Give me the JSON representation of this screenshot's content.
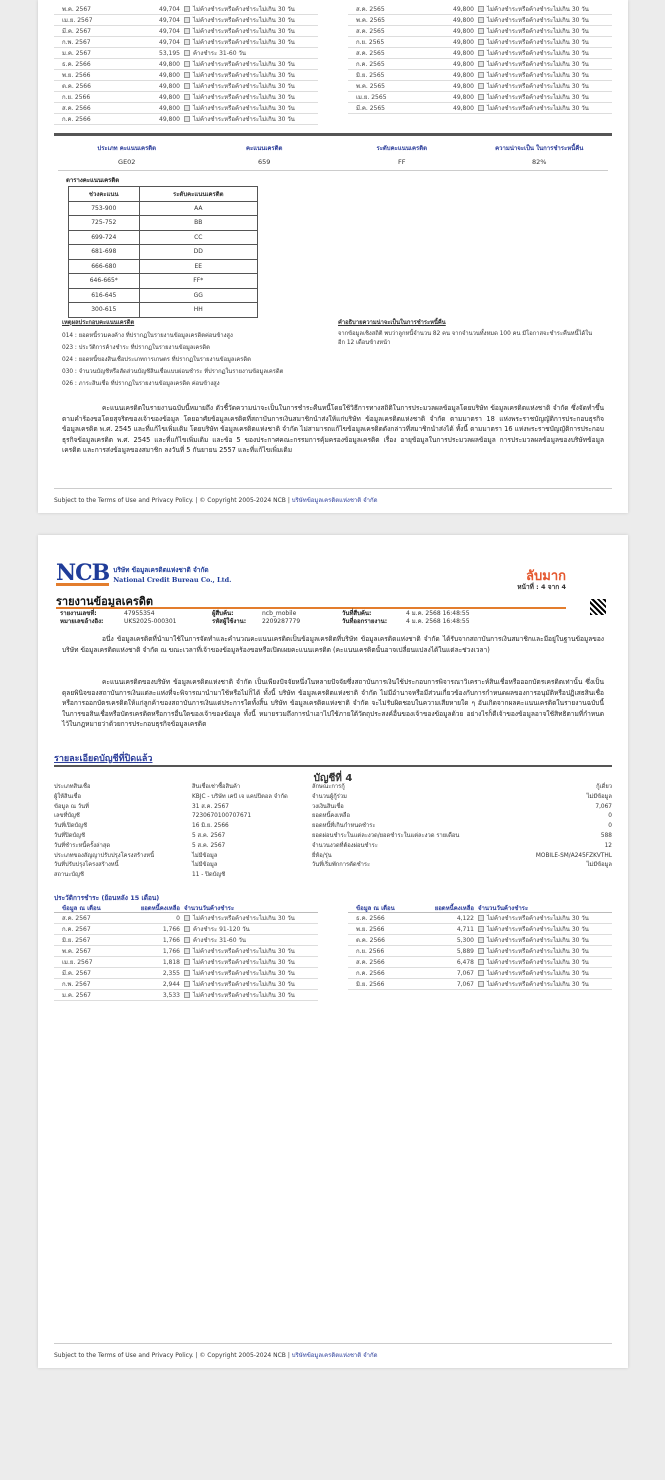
{
  "page1": {
    "history_left": [
      {
        "month": "พ.ค. 2567",
        "amount": "49,704",
        "status": "ไม่ค้างชำระหรือค้างชำระไม่เกิน 30 วัน"
      },
      {
        "month": "เม.ย. 2567",
        "amount": "49,704",
        "status": "ไม่ค้างชำระหรือค้างชำระไม่เกิน 30 วัน"
      },
      {
        "month": "มี.ค. 2567",
        "amount": "49,704",
        "status": "ไม่ค้างชำระหรือค้างชำระไม่เกิน 30 วัน"
      },
      {
        "month": "ก.พ. 2567",
        "amount": "49,704",
        "status": "ไม่ค้างชำระหรือค้างชำระไม่เกิน 30 วัน"
      },
      {
        "month": "ม.ค. 2567",
        "amount": "53,195",
        "status": "ค้างชำระ 31-60 วัน"
      },
      {
        "month": "ธ.ค. 2566",
        "amount": "49,800",
        "status": "ไม่ค้างชำระหรือค้างชำระไม่เกิน 30 วัน"
      },
      {
        "month": "พ.ย. 2566",
        "amount": "49,800",
        "status": "ไม่ค้างชำระหรือค้างชำระไม่เกิน 30 วัน"
      },
      {
        "month": "ต.ค. 2566",
        "amount": "49,800",
        "status": "ไม่ค้างชำระหรือค้างชำระไม่เกิน 30 วัน"
      },
      {
        "month": "ก.ย. 2566",
        "amount": "49,800",
        "status": "ไม่ค้างชำระหรือค้างชำระไม่เกิน 30 วัน"
      },
      {
        "month": "ส.ค. 2566",
        "amount": "49,800",
        "status": "ไม่ค้างชำระหรือค้างชำระไม่เกิน 30 วัน"
      },
      {
        "month": "ก.ค. 2566",
        "amount": "49,800",
        "status": "ไม่ค้างชำระหรือค้างชำระไม่เกิน 30 วัน"
      }
    ],
    "history_right": [
      {
        "month": "ส.ค. 2565",
        "amount": "49,800",
        "status": "ไม่ค้างชำระหรือค้างชำระไม่เกิน 30 วัน"
      },
      {
        "month": "พ.ค. 2565",
        "amount": "49,800",
        "status": "ไม่ค้างชำระหรือค้างชำระไม่เกิน 30 วัน"
      },
      {
        "month": "ส.ค. 2565",
        "amount": "49,800",
        "status": "ไม่ค้างชำระหรือค้างชำระไม่เกิน 30 วัน"
      },
      {
        "month": "ก.ย. 2565",
        "amount": "49,800",
        "status": "ไม่ค้างชำระหรือค้างชำระไม่เกิน 30 วัน"
      },
      {
        "month": "ส.ค. 2565",
        "amount": "49,800",
        "status": "ไม่ค้างชำระหรือค้างชำระไม่เกิน 30 วัน"
      },
      {
        "month": "ก.ค. 2565",
        "amount": "49,800",
        "status": "ไม่ค้างชำระหรือค้างชำระไม่เกิน 30 วัน"
      },
      {
        "month": "มิ.ย. 2565",
        "amount": "49,800",
        "status": "ไม่ค้างชำระหรือค้างชำระไม่เกิน 30 วัน"
      },
      {
        "month": "พ.ค. 2565",
        "amount": "49,800",
        "status": "ไม่ค้างชำระหรือค้างชำระไม่เกิน 30 วัน"
      },
      {
        "month": "เม.ย. 2565",
        "amount": "49,800",
        "status": "ไม่ค้างชำระหรือค้างชำระไม่เกิน 30 วัน"
      },
      {
        "month": "มี.ค. 2565",
        "amount": "49,800",
        "status": "ไม่ค้างชำระหรือค้างชำระไม่เกิน 30 วัน"
      }
    ],
    "score": {
      "labels": [
        "ประเภท คะแนนเครดิต",
        "คะแนนเครดิต",
        "ระดับคะแนนเครดิต",
        "ความน่าจะเป็น ในการชำระหนี้คืน"
      ],
      "values": [
        "GE02",
        "659",
        "FF",
        "82%"
      ]
    },
    "range_table": {
      "title": "ตารางคะแนนเครดิต",
      "headers": [
        "ช่วงคะแนน",
        "ระดับคะแนนเครดิต"
      ],
      "rows": [
        [
          "753-900",
          "AA"
        ],
        [
          "725-752",
          "BB"
        ],
        [
          "699-724",
          "CC"
        ],
        [
          "681-698",
          "DD"
        ],
        [
          "666-680",
          "EE"
        ],
        [
          "646-665*",
          "FF*"
        ],
        [
          "616-645",
          "GG"
        ],
        [
          "300-615",
          "HH"
        ]
      ]
    },
    "codes": {
      "title": "เหตุผลประกอบคะแนนเครดิต",
      "items": [
        "014 : ยอดหนี้รวมคงค้าง ที่ปรากฏในรายงานข้อมูลเครดิตค่อนข้างสูง",
        "023 : ประวัติการค้างชำระ ที่ปรากฏในรายงานข้อมูลเครดิต",
        "024 : ยอดหนี้ของสินเชื่อประเภทการเกษตร ที่ปรากฏในรายงานข้อมูลเครดิต",
        "030 : จำนวนบัญชีหรือสัดส่วนบัญชีสินเชื่อแบบผ่อนชำระ ที่ปรากฏในรายงานข้อมูลเครดิต",
        "026 : ภาระสินเชื่อ ที่ปรากฏในรายงานข้อมูลเครดิต ค่อนข้างสูง"
      ]
    },
    "explain": {
      "title": "คำอธิบายความน่าจะเป็นในการชำระหนี้คืน",
      "text": "จากข้อมูลเชิงสถิติ พบว่าลูกหนี้จำนวน 82 คน จากจำนวนทั้งหมด 100 คน มีโอกาสจะชำระคืนหนี้ได้ในอีก 12 เดือนข้างหน้า"
    },
    "paragraph": "คะแนนเครดิตในรายงานฉบับนี้หมายถึง ตัวชี้วัดความน่าจะเป็นในการชำระคืนหนี้โดยใช้วิธีการทางสถิติในการประมวลผลข้อมูลโดยบริษัท ข้อมูลเครดิตแห่งชาติ จำกัด ซึ่งจัดทำขึ้นตามคำร้องขอโดยสุจริตของเจ้าของข้อมูล โดยอาศัยข้อมูลเครดิตที่สถาบันการเงินสมาชิกนำส่งให้แก่บริษัท ข้อมูลเครดิตแห่งชาติ จำกัด ตามมาตรา 18 แห่งพระราชบัญญัติการประกอบธุรกิจข้อมูลเครดิต พ.ศ. 2545 และที่แก้ไขเพิ่มเติม โดยบริษัท ข้อมูลเครดิตแห่งชาติ จำกัด ไม่สามารถแก้ไขข้อมูลเครดิตดังกล่าวที่สมาชิกนำส่งได้ ทั้งนี้ ตามมาตรา 16 แห่งพระราชบัญญัติการประกอบธุรกิจข้อมูลเครดิต พ.ศ. 2545 และที่แก้ไขเพิ่มเติม และข้อ 5 ของประกาศคณะกรรมการคุ้มครองข้อมูลเครดิต เรื่อง อายุข้อมูลในการประมวลผลข้อมูล การประมวลผลข้อมูลของบริษัทข้อมูลเครดิต และการส่งข้อมูลของสมาชิก ลงวันที่ 5 กันยายน 2557 และที่แก้ไขเพิ่มเติม"
  },
  "footer": {
    "text": "Subject to the Terms of Use and Privacy Policy. | © Copyright 2005-2024 NCB | ",
    "link": "บริษัทข้อมูลเครดิตแห่งชาติ จำกัด"
  },
  "page2": {
    "logo": {
      "abbr": "NCB",
      "th": "บริษัท ข้อมูลเครดิตแห่งชาติ จำกัด",
      "en": "National Credit Bureau Co., Ltd."
    },
    "confidential": "ลับมาก",
    "page_label": "หน้าที่ : 4 จาก 4",
    "report_title": "รายงานข้อมูลเครดิต",
    "info": [
      [
        "รายงานเลขที่:",
        "47955354",
        "ผู้สืบค้น:",
        "ncb_mobile",
        "วันที่สืบค้น:",
        "4 ม.ค. 2568 16:48:55"
      ],
      [
        "หมายเลขอ้างอิง:",
        "UKS2025-000301",
        "รหัสผู้ใช้งาน:",
        "2209287779",
        "วันที่ออกรายงาน:",
        "4 ม.ค. 2568 16:48:55"
      ]
    ],
    "para1": "อนึ่ง ข้อมูลเครดิตที่นำมาใช้ในการจัดทำและคำนวณคะแนนเครดิตเป็นข้อมูลเครดิตที่บริษัท ข้อมูลเครดิตแห่งชาติ จำกัด ได้รับจากสถาบันการเงินสมาชิกและมีอยู่ในฐานข้อมูลของบริษัท ข้อมูลเครดิตแห่งชาติ จำกัด ณ ขณะเวลาที่เจ้าของข้อมูลร้องขอหรือเปิดเผยคะแนนเครดิต (คะแนนเครดิตนั้นอาจเปลี่ยนแปลงได้ในแต่ละช่วงเวลา)",
    "para2": "คะแนนเครดิตของบริษัท ข้อมูลเครดิตแห่งชาติ จำกัด เป็นเพียงปัจจัยหนึ่งในหลายปัจจัยซึ่งสถาบันการเงินใช้ประกอบการพิจารณาวิเคราะห์สินเชื่อหรือออกบัตรเครดิตเท่านั้น ซึ่งเป็นดุลยพินิจของสถาบันการเงินแต่ละแห่งที่จะพิจารณานำมาใช้หรือไม่ก็ได้ ทั้งนี้ บริษัท ข้อมูลเครดิตแห่งชาติ จำกัด ไม่มีอำนาจหรือมีส่วนเกี่ยวข้องกับการกำหนดผลของการอนุมัติหรือปฏิเสธสินเชื่อหรือการออกบัตรเครดิตให้แก่ลูกค้าของสถาบันการเงินแต่ประการใดทั้งสิ้น บริษัท ข้อมูลเครดิตแห่งชาติ จำกัด จะไม่รับผิดชอบในความเสียหายใด ๆ อันเกิดจากผลคะแนนเครดิตในรายงานฉบับนี้ในการขอสินเชื่อหรือบัตรเครดิตหรือการอื่นใดของเจ้าของข้อมูล ทั้งนี้ หมายรวมถึงการนำเอาไปใช้ภายใต้วัตถุประสงค์อื่นของเจ้าของข้อมูลด้วย อย่างไรก็ดีเจ้าของข้อมูลอาจใช้สิทธิตามที่กำหนดไว้ในกฎหมายว่าด้วยการประกอบธุรกิจข้อมูลเครดิต",
    "section_title": "รายละเอียดบัญชีที่ปิดแล้ว",
    "account_title": "บัญชีที่ 4",
    "details": [
      [
        "ประเภทสินเชื่อ",
        "สินเชื่อเช่าซื้อสินค้า",
        "ลักษณะการกู้",
        "กู้เดี่ยว"
      ],
      [
        "ผู้ให้สินเชื่อ",
        "KBJC - บริษัท เคบี เจ แคปปิตอล จำกัด",
        "จำนวนผู้กู้ร่วม",
        "ไม่มีข้อมูล"
      ],
      [
        "ข้อมูล ณ วันที่",
        "31 ส.ค. 2567",
        "วงเงินสินเชื่อ",
        "7,067"
      ],
      [
        "เลขที่บัญชี",
        "7230670100707671",
        "ยอดหนี้คงเหลือ",
        "0"
      ],
      [
        "วันที่เปิดบัญชี",
        "16 มิ.ย. 2566",
        "ยอดหนี้ที่เกินกำหนดชำระ",
        "0"
      ],
      [
        "วันที่ปิดบัญชี",
        "5 ส.ค. 2567",
        "ยอดผ่อนชำระในแต่ละงวด/ยอดชำระในแต่ละงวด รายเดือน",
        "588"
      ],
      [
        "วันที่ชำระหนี้ครั้งล่าสุด",
        "5 ส.ค. 2567",
        "จำนวนงวดที่ต้องผ่อนชำระ",
        "12"
      ],
      [
        "ประเภทของสัญญาปรับปรุงโครงสร้างหนี้",
        "ไม่มีข้อมูล",
        "ยี่ห้อ/รุ่น",
        "MOBILE-SM/A245FZKVTHL"
      ],
      [
        "วันที่ปรับปรุงโครงสร้างหนี้",
        "ไม่มีข้อมูล",
        "วันที่เริ่มพักการตัดชำระ",
        "ไม่มีข้อมูล"
      ],
      [
        "สถานะบัญชี",
        "11 - ปิดบัญชี",
        "",
        ""
      ]
    ],
    "history_label": "ประวัติการชำระ (ย้อนหลัง 15 เดือน)",
    "history_headers": [
      "ข้อมูล ณ เดือน",
      "ยอดหนี้คงเหลือ",
      "จำนวนวันค้างชำระ"
    ],
    "history_left": [
      {
        "month": "ส.ค. 2567",
        "amount": "0",
        "status": "ไม่ค้างชำระหรือค้างชำระไม่เกิน 30 วัน"
      },
      {
        "month": "ก.ค. 2567",
        "amount": "1,766",
        "status": "ค้างชำระ 91-120 วัน"
      },
      {
        "month": "มิ.ย. 2567",
        "amount": "1,766",
        "status": "ค้างชำระ 31-60 วัน"
      },
      {
        "month": "พ.ค. 2567",
        "amount": "1,766",
        "status": "ไม่ค้างชำระหรือค้างชำระไม่เกิน 30 วัน"
      },
      {
        "month": "เม.ย. 2567",
        "amount": "1,818",
        "status": "ไม่ค้างชำระหรือค้างชำระไม่เกิน 30 วัน"
      },
      {
        "month": "มี.ค. 2567",
        "amount": "2,355",
        "status": "ไม่ค้างชำระหรือค้างชำระไม่เกิน 30 วัน"
      },
      {
        "month": "ก.พ. 2567",
        "amount": "2,944",
        "status": "ไม่ค้างชำระหรือค้างชำระไม่เกิน 30 วัน"
      },
      {
        "month": "ม.ค. 2567",
        "amount": "3,533",
        "status": "ไม่ค้างชำระหรือค้างชำระไม่เกิน 30 วัน"
      }
    ],
    "history_right": [
      {
        "month": "ธ.ค. 2566",
        "amount": "4,122",
        "status": "ไม่ค้างชำระหรือค้างชำระไม่เกิน 30 วัน"
      },
      {
        "month": "พ.ย. 2566",
        "amount": "4,711",
        "status": "ไม่ค้างชำระหรือค้างชำระไม่เกิน 30 วัน"
      },
      {
        "month": "ต.ค. 2566",
        "amount": "5,300",
        "status": "ไม่ค้างชำระหรือค้างชำระไม่เกิน 30 วัน"
      },
      {
        "month": "ก.ย. 2566",
        "amount": "5,889",
        "status": "ไม่ค้างชำระหรือค้างชำระไม่เกิน 30 วัน"
      },
      {
        "month": "ส.ค. 2566",
        "amount": "6,478",
        "status": "ไม่ค้างชำระหรือค้างชำระไม่เกิน 30 วัน"
      },
      {
        "month": "ก.ค. 2566",
        "amount": "7,067",
        "status": "ไม่ค้างชำระหรือค้างชำระไม่เกิน 30 วัน"
      },
      {
        "month": "มิ.ย. 2566",
        "amount": "7,067",
        "status": "ไม่ค้างชำระหรือค้างชำระไม่เกิน 30 วัน"
      }
    ]
  }
}
